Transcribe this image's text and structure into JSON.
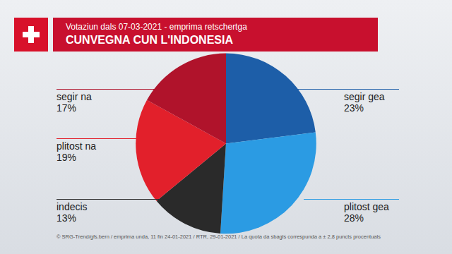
{
  "chart_data": {
    "type": "pie",
    "title": "CUNVEGNA CUN L'INDONESIA",
    "subtitle": "Votaziun dals 07-03-2021 - emprima retschertga",
    "categories": [
      "segir gea",
      "plitost gea",
      "indecis",
      "plitost na",
      "segir na"
    ],
    "values": [
      23,
      28,
      13,
      19,
      17
    ],
    "value_labels": [
      "23%",
      "28%",
      "13%",
      "19%",
      "17%"
    ],
    "colors": [
      "#1d5ea8",
      "#2b9be3",
      "#2a2a2a",
      "#e2202b",
      "#b0132b"
    ],
    "data_labels": true,
    "source": "© SRG-Trend/gfs.bern  /  emprima unda, 11 fin 24-01-2021  / RTR, 29-01-2021  /  La quota da sbagls correspunda a ± 2,8 puncts procentuals"
  }
}
